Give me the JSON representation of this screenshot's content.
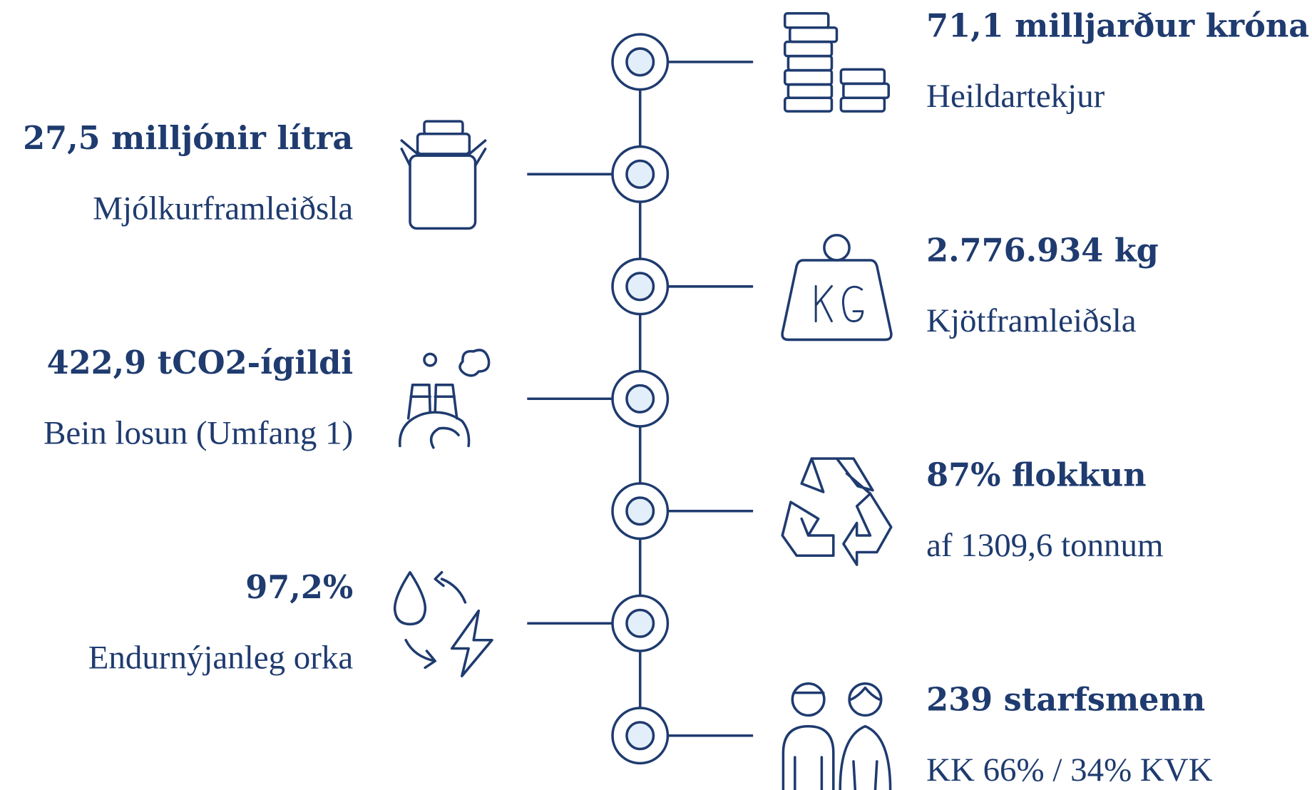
{
  "items": [
    {
      "value": "71,1 milljarður króna",
      "label": "Heildartekjur"
    },
    {
      "value": "27,5 milljónir lítra",
      "label": "Mjólkurframleiðsla"
    },
    {
      "value": "2.776.934 kg",
      "label": "Kjötframleiðsla"
    },
    {
      "value": "422,9 tCO2-ígildi",
      "label": "Bein losun (Umfang 1)"
    },
    {
      "value": "87% flokkun",
      "label": "af 1309,6 tonnum"
    },
    {
      "value": "97,2%",
      "label": "Endurnýjanleg orka"
    },
    {
      "value": "239 starfsmenn",
      "label": "KK 66% / 34% KVK"
    }
  ]
}
